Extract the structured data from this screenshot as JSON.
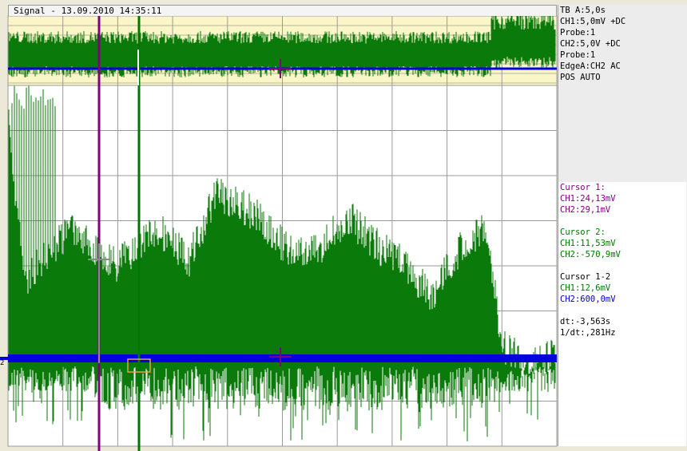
{
  "window": {
    "title": "Signal - 13.09.2010 14:35:11"
  },
  "settings": {
    "lines": [
      "TB A:5,0s",
      "CH1:5,0mV +DC",
      "Probe:1",
      "CH2:5,0V +DC",
      "Probe:1",
      "EdgeA:CH2 AC",
      "POS AUTO"
    ]
  },
  "cursors": {
    "cursor1": {
      "label": "Cursor 1:",
      "ch1": "CH1:24,13mV",
      "ch2": "CH2:29,1mV"
    },
    "cursor2": {
      "label": "Cursor 2:",
      "ch1": "CH1:11,53mV",
      "ch2": "CH2:-570,9mV"
    },
    "delta": {
      "label": "Cursor 1-2",
      "ch1": "CH1:12,6mV",
      "ch2": "CH2:600,0mV"
    },
    "dt": "dt:-3,563s",
    "inv_dt": "1/dt:,281Hz"
  },
  "channel_marker": "2",
  "colors": {
    "ch1_trace": "#0a7a0a",
    "ch2_trace": "#0000dd",
    "cursor1": "#800080",
    "cursor2": "#007700",
    "cursor_delta": "#0000cc",
    "overview_bg": "#fbf6c8",
    "grid": "#9a9a9a",
    "plot_bg": "#ffffff"
  },
  "icons": [
    "crosshair-marker-icon",
    "cursor-1-line",
    "cursor-2-line"
  ]
}
